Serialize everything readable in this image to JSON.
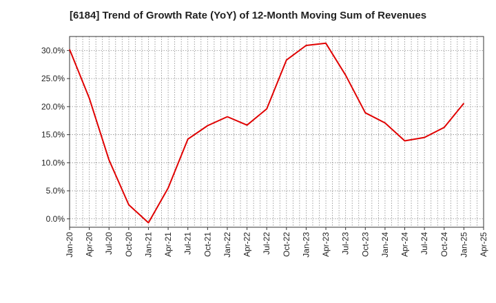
{
  "chart_data": {
    "type": "line",
    "title": "[6184]  Trend of Growth Rate (YoY) of 12-Month Moving Sum of Revenues",
    "xlabel": "",
    "ylabel": "",
    "x_tick_labels": [
      "Jan-20",
      "Apr-20",
      "Jul-20",
      "Oct-20",
      "Jan-21",
      "Apr-21",
      "Jul-21",
      "Oct-21",
      "Jan-22",
      "Apr-22",
      "Jul-22",
      "Oct-22",
      "Jan-23",
      "Apr-23",
      "Jul-23",
      "Oct-23",
      "Jan-24",
      "Apr-24",
      "Jul-24",
      "Oct-24",
      "Jan-25",
      "Apr-25"
    ],
    "y_tick_labels": [
      "0.0%",
      "5.0%",
      "10.0%",
      "15.0%",
      "20.0%",
      "25.0%",
      "30.0%"
    ],
    "y_ticks": [
      0,
      5,
      10,
      15,
      20,
      25,
      30
    ],
    "ylim": [
      -1.5,
      32.5
    ],
    "grid": true,
    "line_color": "#e00000",
    "series": [
      {
        "x": [
          "Jan-20",
          "Apr-20",
          "Jul-20",
          "Oct-20",
          "Jan-21",
          "Apr-21",
          "Jul-21",
          "Oct-21",
          "Jan-22",
          "Apr-22",
          "Jul-22",
          "Oct-22",
          "Jan-23",
          "Apr-23",
          "Jul-23",
          "Oct-23",
          "Jan-24",
          "Apr-24",
          "Jul-24",
          "Oct-24",
          "Jan-25"
        ],
        "values": [
          30.2,
          21.5,
          10.5,
          2.5,
          -0.7,
          5.5,
          14.2,
          16.6,
          18.2,
          16.7,
          19.6,
          28.3,
          30.9,
          31.3,
          25.6,
          18.9,
          17.1,
          13.9,
          14.5,
          16.3,
          20.6
        ]
      }
    ]
  }
}
